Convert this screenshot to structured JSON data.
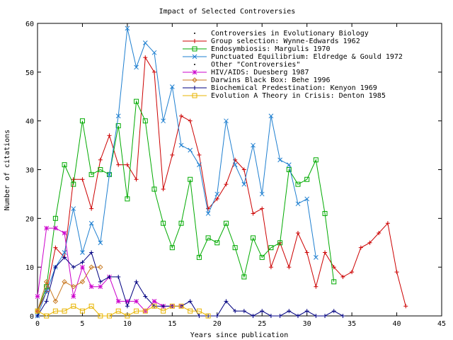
{
  "chart_data": {
    "type": "line",
    "title": "Impact of Selected Controversies",
    "xlabel": "Years since publication",
    "ylabel": "Number of citations",
    "xlim": [
      0,
      45
    ],
    "ylim": [
      0,
      60
    ],
    "x_ticks": [
      0,
      5,
      10,
      15,
      20,
      25,
      30,
      35,
      40,
      45
    ],
    "y_ticks": [
      0,
      10,
      20,
      30,
      40,
      50,
      60
    ],
    "grid": false,
    "legend_position": "top-right",
    "series": [
      {
        "name": "Controversies in Evolutionary Biology",
        "heading": true,
        "color": "#000000",
        "marker": "dot",
        "x": [],
        "y": []
      },
      {
        "name": "Group selection: Wynne-Edwards 1962",
        "color": "#cc0000",
        "marker": "plus",
        "x": [
          0,
          1,
          2,
          3,
          4,
          5,
          6,
          7,
          8,
          9,
          10,
          11,
          12,
          13,
          14,
          15,
          16,
          17,
          18,
          19,
          20,
          21,
          22,
          23,
          24,
          25,
          26,
          27,
          28,
          29,
          30,
          31,
          32,
          33,
          34,
          35,
          36,
          37,
          38,
          39,
          40,
          41
        ],
        "y": [
          1,
          5,
          14,
          12,
          28,
          28,
          22,
          32,
          37,
          31,
          31,
          28,
          53,
          50,
          26,
          33,
          41,
          40,
          33,
          22,
          24,
          27,
          32,
          30,
          21,
          22,
          10,
          15,
          10,
          17,
          13,
          6,
          13,
          10,
          8,
          9,
          14,
          15,
          17,
          19,
          9,
          2
        ]
      },
      {
        "name": "Endosymbiosis: Margulis 1970",
        "color": "#00aa00",
        "marker": "square",
        "x": [
          0,
          1,
          2,
          3,
          4,
          5,
          6,
          7,
          8,
          9,
          10,
          11,
          12,
          13,
          14,
          15,
          16,
          17,
          18,
          19,
          20,
          21,
          22,
          23,
          24,
          25,
          26,
          27,
          28,
          29,
          30,
          31,
          32,
          33
        ],
        "y": [
          1,
          6,
          20,
          31,
          27,
          40,
          29,
          30,
          29,
          39,
          24,
          44,
          40,
          26,
          19,
          14,
          19,
          28,
          12,
          16,
          15,
          19,
          14,
          8,
          16,
          12,
          14,
          15,
          30,
          27,
          28,
          32,
          21,
          7
        ]
      },
      {
        "name": "Punctuated Equilibrium: Eldredge & Gould 1972",
        "color": "#1e7fd0",
        "marker": "cross",
        "x": [
          0,
          1,
          2,
          3,
          4,
          5,
          6,
          7,
          8,
          9,
          10,
          11,
          12,
          13,
          14,
          15,
          16,
          17,
          18,
          19,
          20,
          21,
          22,
          23,
          24,
          25,
          26,
          27,
          28,
          29,
          30,
          31
        ],
        "y": [
          0,
          5,
          10,
          13,
          22,
          13,
          19,
          15,
          29,
          41,
          59,
          51,
          56,
          54,
          40,
          47,
          35,
          34,
          31,
          21,
          25,
          40,
          31,
          27,
          35,
          25,
          41,
          32,
          31,
          23,
          24,
          12
        ]
      },
      {
        "name": "Other \"Controversies\"",
        "heading": true,
        "color": "#000000",
        "marker": "dot",
        "x": [],
        "y": []
      },
      {
        "name": "HIV/AIDS: Duesberg 1987",
        "color": "#cc00cc",
        "marker": "star",
        "x": [
          0,
          1,
          2,
          3,
          4,
          5,
          6,
          7,
          8,
          9,
          10,
          11,
          12,
          13,
          14,
          15,
          16
        ],
        "y": [
          4,
          18,
          18,
          17,
          4,
          10,
          6,
          6,
          8,
          3,
          3,
          3,
          1,
          3,
          2,
          2,
          2
        ]
      },
      {
        "name": "Darwins Black Box: Behe 1996",
        "color": "#c87820",
        "marker": "diamond",
        "x": [
          0,
          1,
          2,
          3,
          4,
          5,
          6,
          7
        ],
        "y": [
          1,
          7,
          3,
          7,
          6,
          7,
          10,
          10
        ]
      },
      {
        "name": "Biochemical Predestination: Kenyon 1969",
        "color": "#000080",
        "marker": "plus",
        "x": [
          0,
          1,
          2,
          3,
          4,
          5,
          6,
          7,
          8,
          9,
          10,
          11,
          12,
          13,
          14,
          15,
          16,
          17,
          18,
          19,
          20,
          21,
          22,
          23,
          24,
          25,
          26,
          27,
          28,
          29,
          30,
          31,
          32,
          33,
          34
        ],
        "y": [
          0,
          3,
          10,
          12,
          10,
          11,
          13,
          7,
          8,
          8,
          2,
          7,
          4,
          2,
          2,
          2,
          2,
          3,
          0,
          0,
          0,
          3,
          1,
          1,
          0,
          1,
          0,
          0,
          1,
          0,
          1,
          0,
          0,
          1,
          0
        ]
      },
      {
        "name": "Evolution A Theory in Crisis: Denton 1985",
        "color": "#e8b400",
        "marker": "square",
        "x": [
          0,
          1,
          2,
          3,
          4,
          5,
          6,
          7,
          8,
          9,
          10,
          11,
          12,
          13,
          14,
          15,
          16,
          17,
          18,
          19
        ],
        "y": [
          1,
          0,
          1,
          1,
          2,
          1,
          2,
          0,
          0,
          1,
          0,
          1,
          1,
          2,
          1,
          2,
          2,
          1,
          1,
          0
        ]
      }
    ]
  }
}
